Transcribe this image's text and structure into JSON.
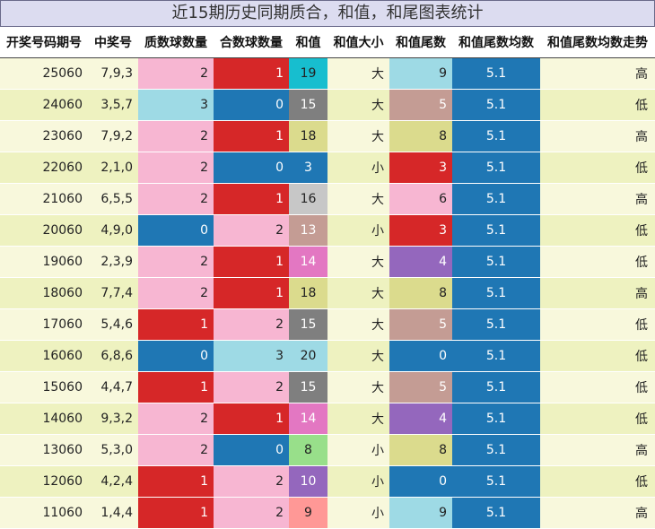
{
  "title": "近15期历史同期质合，和值，和尾图表统计",
  "headers": [
    "开奖号码期号",
    "中奖号",
    "质数球数量",
    "合数球数量",
    "和值",
    "和值大小",
    "和值尾数",
    "和值尾数均数",
    "和值尾数均数走势"
  ],
  "colors": {
    "row_light": "#f8f8dc",
    "row_alt": "#eef2c0",
    "pink": "#f7b6d2",
    "red": "#d62728",
    "blue": "#1f77b4",
    "light_blue": "#9edae5",
    "avg_blue": "#1f77b4"
  },
  "rows": [
    {
      "issue": "25060",
      "numbers": "7,9,3",
      "prime": "2",
      "composite": "1",
      "sum": "19",
      "size": "大",
      "tail": "9",
      "avg": "5.1",
      "trend": "高"
    },
    {
      "issue": "24060",
      "numbers": "3,5,7",
      "prime": "3",
      "composite": "0",
      "sum": "15",
      "size": "大",
      "tail": "5",
      "avg": "5.1",
      "trend": "低"
    },
    {
      "issue": "23060",
      "numbers": "7,9,2",
      "prime": "2",
      "composite": "1",
      "sum": "18",
      "size": "大",
      "tail": "8",
      "avg": "5.1",
      "trend": "高"
    },
    {
      "issue": "22060",
      "numbers": "2,1,0",
      "prime": "2",
      "composite": "0",
      "sum": "3",
      "size": "小",
      "tail": "3",
      "avg": "5.1",
      "trend": "低"
    },
    {
      "issue": "21060",
      "numbers": "6,5,5",
      "prime": "2",
      "composite": "1",
      "sum": "16",
      "size": "大",
      "tail": "6",
      "avg": "5.1",
      "trend": "高"
    },
    {
      "issue": "20060",
      "numbers": "4,9,0",
      "prime": "0",
      "composite": "2",
      "sum": "13",
      "size": "小",
      "tail": "3",
      "avg": "5.1",
      "trend": "低"
    },
    {
      "issue": "19060",
      "numbers": "2,3,9",
      "prime": "2",
      "composite": "1",
      "sum": "14",
      "size": "大",
      "tail": "4",
      "avg": "5.1",
      "trend": "低"
    },
    {
      "issue": "18060",
      "numbers": "7,7,4",
      "prime": "2",
      "composite": "1",
      "sum": "18",
      "size": "大",
      "tail": "8",
      "avg": "5.1",
      "trend": "高"
    },
    {
      "issue": "17060",
      "numbers": "5,4,6",
      "prime": "1",
      "composite": "2",
      "sum": "15",
      "size": "大",
      "tail": "5",
      "avg": "5.1",
      "trend": "低"
    },
    {
      "issue": "16060",
      "numbers": "6,8,6",
      "prime": "0",
      "composite": "3",
      "sum": "20",
      "size": "大",
      "tail": "0",
      "avg": "5.1",
      "trend": "低"
    },
    {
      "issue": "15060",
      "numbers": "4,4,7",
      "prime": "1",
      "composite": "2",
      "sum": "15",
      "size": "大",
      "tail": "5",
      "avg": "5.1",
      "trend": "低"
    },
    {
      "issue": "14060",
      "numbers": "9,3,2",
      "prime": "2",
      "composite": "1",
      "sum": "14",
      "size": "大",
      "tail": "4",
      "avg": "5.1",
      "trend": "低"
    },
    {
      "issue": "13060",
      "numbers": "5,3,0",
      "prime": "2",
      "composite": "0",
      "sum": "8",
      "size": "小",
      "tail": "8",
      "avg": "5.1",
      "trend": "高"
    },
    {
      "issue": "12060",
      "numbers": "4,2,4",
      "prime": "1",
      "composite": "2",
      "sum": "10",
      "size": "小",
      "tail": "0",
      "avg": "5.1",
      "trend": "低"
    },
    {
      "issue": "11060",
      "numbers": "1,4,4",
      "prime": "1",
      "composite": "2",
      "sum": "9",
      "size": "小",
      "tail": "9",
      "avg": "5.1",
      "trend": "高"
    }
  ]
}
